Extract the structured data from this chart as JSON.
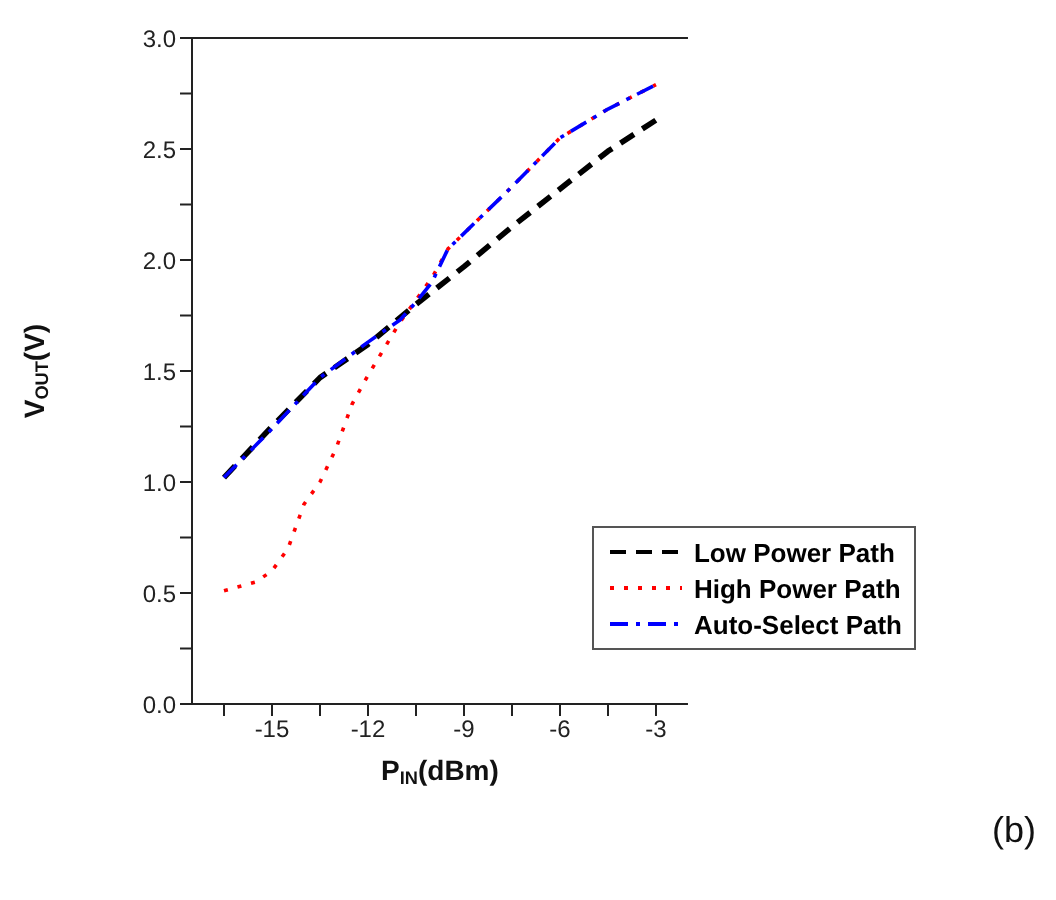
{
  "chart_data": {
    "type": "line",
    "xlabel": "P$_{IN}$(dBm)",
    "ylabel": "V$_{OUT}$(V)",
    "annotations": [
      "(b)"
    ],
    "xlim": [
      -17.5,
      -2
    ],
    "xticks": [
      {
        "value": -16.5,
        "label": null
      },
      -15,
      {
        "value": -13.5,
        "label": null
      },
      -12,
      {
        "value": -10.5,
        "label": null
      },
      -9,
      {
        "value": -7.5,
        "label": null
      },
      -6,
      {
        "value": -4.5,
        "label": null
      },
      -3
    ],
    "ylim": [
      0,
      3
    ],
    "yticks": [
      "0.0",
      {
        "value": 0.25,
        "label": null
      },
      {
        "value": 0.5,
        "label": "0.5"
      },
      {
        "value": 0.75,
        "label": null
      },
      {
        "value": 1,
        "label": "1.0"
      },
      {
        "value": 1.25,
        "label": null
      },
      {
        "value": 1.5,
        "label": "1.5"
      },
      {
        "value": 1.75,
        "label": null
      },
      {
        "value": 2,
        "label": "2.0"
      },
      {
        "value": 2.25,
        "label": null
      },
      {
        "value": 2.5,
        "label": "2.5"
      },
      {
        "value": 2.75,
        "label": null
      },
      {
        "value": 3,
        "label": "3.0"
      }
    ],
    "grid": false,
    "legend": "right",
    "marker": "none",
    "series": [
      {
        "name": "Low Power Path",
        "color": "#000000",
        "line_style": "dashed",
        "x": [
          -16.5,
          -15,
          -13.5,
          -12,
          -10.5,
          -9,
          -7.5,
          -6,
          -4.5,
          -3
        ],
        "values": [
          1.02,
          1.25,
          1.47,
          1.62,
          1.8,
          1.97,
          2.15,
          2.32,
          2.49,
          2.63
        ]
      },
      {
        "name": "High Power Path",
        "color": "#ff0000",
        "line_style": "dotted",
        "x": [
          -16.5,
          -15.5,
          -15,
          -14.5,
          -14,
          -13.5,
          -13,
          -12.5,
          -12,
          -11.5,
          -11,
          -10.5,
          -10,
          -9.5,
          -9,
          -7.5,
          -6,
          -4.5,
          -3
        ],
        "values": [
          0.51,
          0.55,
          0.6,
          0.7,
          0.9,
          1.0,
          1.15,
          1.35,
          1.48,
          1.6,
          1.72,
          1.82,
          1.92,
          2.05,
          2.12,
          2.33,
          2.55,
          2.68,
          2.79
        ]
      },
      {
        "name": "Auto-Select Path",
        "color": "#0000ff",
        "line_style": "dashdot",
        "x": [
          -16.5,
          -15,
          -13.5,
          -12,
          -11,
          -10.5,
          -10,
          -9.5,
          -9,
          -7.5,
          -6,
          -4.5,
          -3
        ],
        "values": [
          1.02,
          1.24,
          1.47,
          1.63,
          1.73,
          1.81,
          1.9,
          2.05,
          2.12,
          2.33,
          2.55,
          2.68,
          2.79
        ]
      }
    ]
  }
}
